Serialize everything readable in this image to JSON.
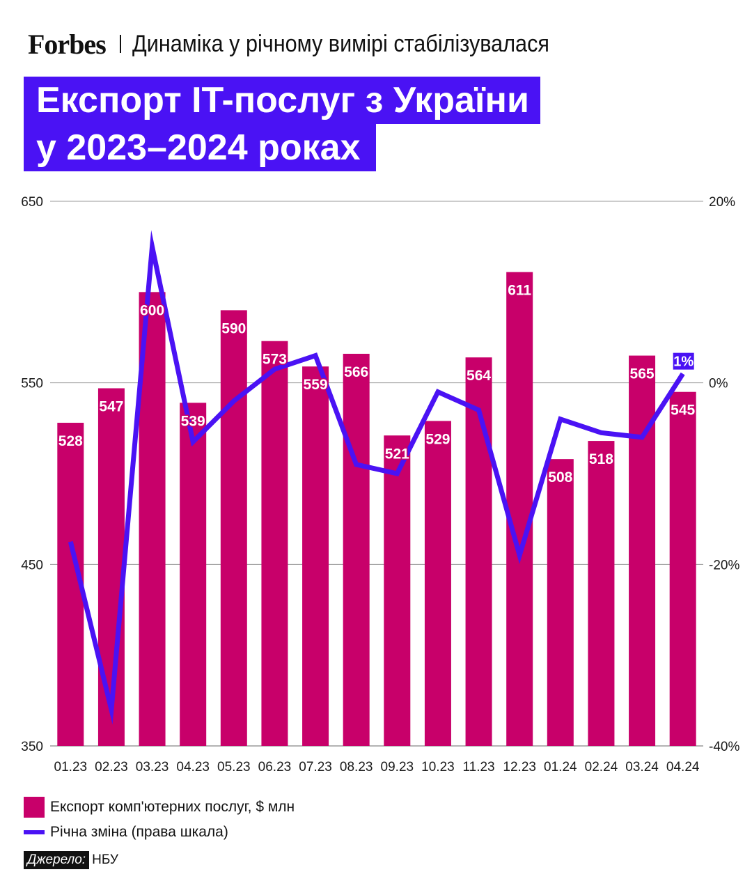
{
  "header": {
    "logo": "Forbes",
    "subtitle": "Динаміка у річному вимірі стабілізувалася"
  },
  "title": {
    "line1": "Експорт IT-послуг з України",
    "line2": "у 2023–2024 роках"
  },
  "colors": {
    "bar": "#c8006a",
    "line": "#4a12f4",
    "grid": "#9a9a9a",
    "text": "#1a1a1a"
  },
  "chart_data": {
    "type": "bar",
    "categories": [
      "01.23",
      "02.23",
      "03.23",
      "04.23",
      "05.23",
      "06.23",
      "07.23",
      "08.23",
      "09.23",
      "10.23",
      "11.23",
      "12.23",
      "01.24",
      "02.24",
      "03.24",
      "04.24"
    ],
    "series": [
      {
        "name": "Експорт комп'ютерних послуг, $ млн",
        "type": "bar",
        "axis": "left",
        "values": [
          528,
          547,
          600,
          539,
          590,
          573,
          559,
          566,
          521,
          529,
          564,
          611,
          508,
          518,
          565,
          545
        ]
      },
      {
        "name": "Річна зміна (права шкала)",
        "type": "line",
        "axis": "right",
        "values": [
          -17.5,
          -36,
          15,
          -6.5,
          -2,
          1.5,
          3,
          -9,
          -10,
          -1,
          -3,
          -19,
          -4,
          -5.5,
          -6,
          1
        ]
      }
    ],
    "left_axis": {
      "ticks": [
        "650",
        "550",
        "450",
        "350"
      ],
      "ylim": [
        350,
        650
      ]
    },
    "right_axis": {
      "ticks": [
        "20%",
        "0%",
        "-20%",
        "-40%"
      ],
      "ylim": [
        -40,
        20
      ]
    },
    "highlight_label": "1%"
  },
  "legend": {
    "bar_label": "Експорт комп'ютерних послуг, $ млн",
    "line_label": "Річна зміна (права шкала)"
  },
  "source": {
    "label": "Джерело:",
    "value": "НБУ"
  }
}
